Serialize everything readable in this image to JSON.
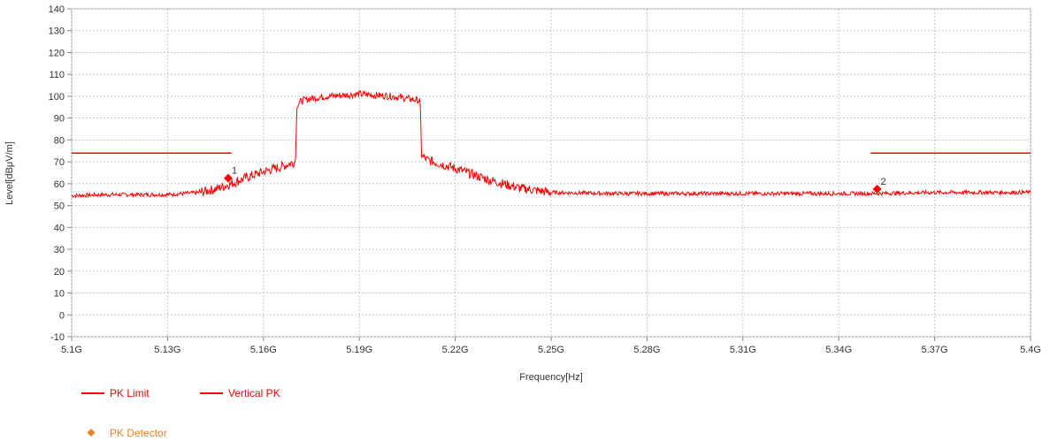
{
  "chart_data": {
    "type": "line",
    "title": "",
    "xlabel": "Frequency[Hz]",
    "ylabel": "Level[dBμV/m]",
    "xlim": [
      5.1,
      5.4
    ],
    "ylim": [
      -10,
      140
    ],
    "x_ticks": [
      5.1,
      5.13,
      5.16,
      5.19,
      5.22,
      5.25,
      5.28,
      5.31,
      5.34,
      5.37,
      5.4
    ],
    "x_tick_labels": [
      "5.1G",
      "5.13G",
      "5.16G",
      "5.19G",
      "5.22G",
      "5.25G",
      "5.28G",
      "5.31G",
      "5.34G",
      "5.37G",
      "5.4G"
    ],
    "y_ticks": [
      -10,
      0,
      10,
      20,
      30,
      40,
      50,
      60,
      70,
      80,
      90,
      100,
      110,
      120,
      130,
      140
    ],
    "y_tick_labels": [
      "-10",
      "0",
      "10",
      "20",
      "30",
      "40",
      "50",
      "60",
      "70",
      "80",
      "90",
      "100",
      "110",
      "120",
      "130",
      "140"
    ],
    "grid": true,
    "legend_position": "bottom-left",
    "series": [
      {
        "name": "PK Limit",
        "color": "#ff0000",
        "segments": [
          [
            [
              5.1,
              74
            ],
            [
              5.15,
              74
            ]
          ],
          [
            [
              5.35,
              74
            ],
            [
              5.4,
              74
            ]
          ]
        ]
      },
      {
        "name": "Vertical PK",
        "color": "#ff0000",
        "x": [
          5.1,
          5.11,
          5.12,
          5.13,
          5.14,
          5.145,
          5.15,
          5.155,
          5.16,
          5.165,
          5.17,
          5.1705,
          5.172,
          5.175,
          5.18,
          5.185,
          5.19,
          5.195,
          5.2,
          5.205,
          5.209,
          5.2095,
          5.211,
          5.22,
          5.23,
          5.24,
          5.25,
          5.27,
          5.3,
          5.33,
          5.35,
          5.37,
          5.4
        ],
        "y": [
          54.5,
          55,
          55,
          55,
          56,
          57.5,
          60,
          63,
          65.5,
          67.5,
          70,
          96,
          98,
          99,
          100,
          100.5,
          101,
          100.5,
          100,
          99,
          98,
          73,
          71,
          67,
          62,
          58,
          56,
          55.5,
          55.5,
          55.5,
          55.5,
          56,
          56
        ]
      },
      {
        "name": "PK Detector",
        "color": "#ff0000",
        "legend_color": "#f08020",
        "markers": [
          {
            "x": 5.149,
            "y": 62.5,
            "label": "1"
          },
          {
            "x": 5.352,
            "y": 57.5,
            "label": "2"
          }
        ]
      }
    ]
  }
}
